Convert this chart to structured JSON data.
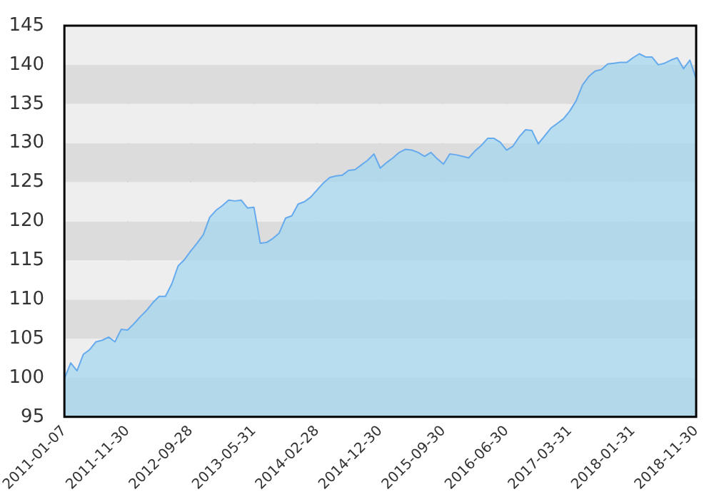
{
  "chart_data": {
    "type": "area",
    "categories": [
      "2011-01-07",
      null,
      null,
      null,
      null,
      null,
      null,
      null,
      null,
      null,
      "2011-11-30",
      null,
      null,
      null,
      null,
      null,
      null,
      null,
      null,
      null,
      "2012-09-28",
      null,
      null,
      null,
      null,
      null,
      null,
      null,
      null,
      null,
      "2013-05-31",
      null,
      null,
      null,
      null,
      null,
      null,
      null,
      null,
      null,
      "2014-02-28",
      null,
      null,
      null,
      null,
      null,
      null,
      null,
      null,
      null,
      "2014-12-30",
      null,
      null,
      null,
      null,
      null,
      null,
      null,
      null,
      null,
      "2015-09-30",
      null,
      null,
      null,
      null,
      null,
      null,
      null,
      null,
      null,
      "2016-06-30",
      null,
      null,
      null,
      null,
      null,
      null,
      null,
      null,
      null,
      "2017-03-31",
      null,
      null,
      null,
      null,
      null,
      null,
      null,
      null,
      null,
      "2018-01-31",
      null,
      null,
      null,
      null,
      null,
      null,
      null,
      null,
      null,
      "2018-11-30"
    ],
    "series": [
      {
        "color": "#66aaee",
        "values": [
          99.9,
          101.9,
          100.9,
          103.0,
          103.6,
          104.6,
          104.8,
          105.2,
          104.6,
          106.2,
          106.1,
          106.9,
          107.8,
          108.6,
          109.6,
          110.4,
          110.4,
          112.0,
          114.3,
          115.1,
          116.2,
          117.2,
          118.3,
          120.5,
          121.4,
          122.0,
          122.7,
          122.6,
          122.7,
          121.7,
          121.8,
          117.2,
          117.3,
          117.8,
          118.5,
          120.4,
          120.7,
          122.2,
          122.5,
          123.1,
          124.0,
          124.9,
          125.6,
          125.8,
          125.9,
          126.5,
          126.6,
          127.2,
          127.8,
          128.6,
          126.8,
          127.5,
          128.1,
          128.8,
          129.2,
          129.1,
          128.8,
          128.3,
          128.8,
          128.0,
          127.3,
          128.6,
          128.5,
          128.3,
          128.1,
          129.0,
          129.7,
          130.6,
          130.6,
          130.1,
          129.1,
          129.6,
          130.8,
          131.7,
          131.6,
          129.9,
          130.9,
          131.9,
          132.5,
          133.1,
          134.1,
          135.4,
          137.4,
          138.5,
          139.2,
          139.4,
          140.1,
          140.2,
          140.3,
          140.3,
          140.9,
          141.4,
          141.0,
          141.0,
          140.0,
          140.2,
          140.6,
          140.9,
          139.5,
          140.6,
          138.2
        ]
      }
    ],
    "ylim": [
      95,
      145
    ],
    "yticks": [
      95,
      100,
      105,
      110,
      115,
      120,
      125,
      130,
      135,
      140,
      145
    ],
    "grid": true,
    "legend": false,
    "marker": "none",
    "line_style": "solid"
  }
}
